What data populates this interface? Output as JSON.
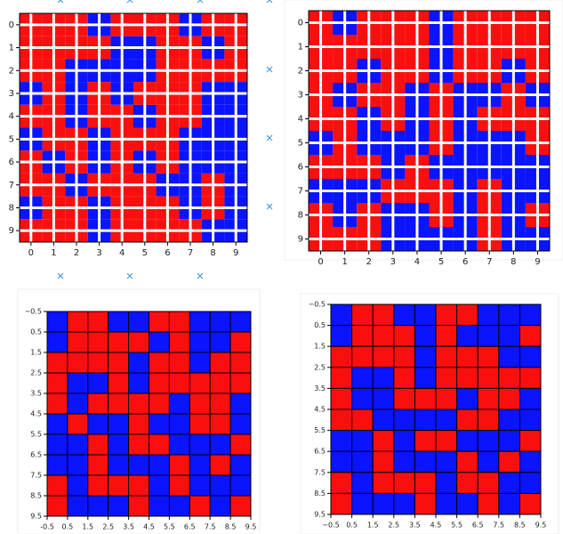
{
  "chart_data": [
    {
      "type": "heatmap",
      "colors": [
        "#0a14ff",
        "#fa0f0f"
      ],
      "grid": true,
      "cell_edges": false,
      "xlim": [
        -0.5,
        9.5
      ],
      "ylim": [
        9.5,
        -0.5
      ],
      "xticks": [
        0,
        1,
        2,
        3,
        4,
        5,
        6,
        7,
        8,
        9
      ],
      "yticks": [
        0,
        1,
        2,
        3,
        4,
        5,
        6,
        7,
        8,
        9
      ],
      "z": [
        [
          1,
          1,
          1,
          0,
          1,
          1,
          1,
          0,
          1,
          1
        ],
        [
          1,
          1,
          1,
          1,
          0,
          0,
          1,
          1,
          0,
          1
        ],
        [
          1,
          1,
          0,
          0,
          0,
          0,
          1,
          1,
          1,
          1
        ],
        [
          0,
          1,
          0,
          1,
          0,
          1,
          1,
          1,
          0,
          0
        ],
        [
          1,
          1,
          0,
          1,
          1,
          0,
          1,
          1,
          0,
          0
        ],
        [
          0,
          1,
          1,
          0,
          1,
          1,
          1,
          0,
          0,
          0
        ],
        [
          1,
          0,
          1,
          0,
          1,
          0,
          1,
          0,
          0,
          0
        ],
        [
          1,
          1,
          0,
          1,
          1,
          1,
          0,
          0,
          1,
          0
        ],
        [
          0,
          1,
          1,
          0,
          1,
          1,
          1,
          0,
          1,
          0
        ],
        [
          1,
          1,
          1,
          0,
          1,
          1,
          1,
          1,
          0,
          0
        ]
      ]
    },
    {
      "type": "heatmap",
      "colors": [
        "#0a14ff",
        "#fa0f0f"
      ],
      "grid": true,
      "cell_edges": false,
      "xlim": [
        -0.5,
        9.5
      ],
      "ylim": [
        9.5,
        -0.5
      ],
      "xticks": [
        0,
        1,
        2,
        3,
        4,
        5,
        6,
        7,
        8,
        9
      ],
      "yticks": [
        0,
        1,
        2,
        3,
        4,
        5,
        6,
        7,
        8,
        9
      ],
      "z": [
        [
          1,
          0,
          1,
          1,
          1,
          0,
          1,
          1,
          1,
          1
        ],
        [
          1,
          1,
          1,
          1,
          1,
          0,
          1,
          1,
          1,
          1
        ],
        [
          1,
          1,
          0,
          1,
          1,
          0,
          1,
          1,
          0,
          1
        ],
        [
          1,
          0,
          1,
          1,
          0,
          1,
          0,
          0,
          1,
          0
        ],
        [
          1,
          1,
          0,
          1,
          0,
          1,
          0,
          1,
          1,
          1
        ],
        [
          0,
          1,
          0,
          0,
          0,
          1,
          0,
          0,
          0,
          1
        ],
        [
          1,
          1,
          1,
          0,
          1,
          0,
          0,
          0,
          0,
          0
        ],
        [
          0,
          0,
          0,
          1,
          1,
          1,
          0,
          1,
          0,
          0
        ],
        [
          1,
          0,
          1,
          0,
          0,
          1,
          0,
          1,
          0,
          1
        ],
        [
          1,
          1,
          1,
          0,
          0,
          0,
          0,
          1,
          0,
          0
        ]
      ]
    },
    {
      "type": "heatmap",
      "colors": [
        "#0a14ff",
        "#fa0f0f"
      ],
      "grid": false,
      "cell_edges": true,
      "xlim": [
        -0.5,
        9.5
      ],
      "ylim": [
        9.5,
        -0.5
      ],
      "xticks": [
        {
          "value": -0.5,
          "label": "-0.5"
        },
        0.5,
        1.5,
        2.5,
        3.5,
        4.5,
        5.5,
        6.5,
        7.5,
        8.5,
        9.5
      ],
      "yticks": [
        {
          "value": -0.5,
          "label": "−0.5"
        },
        0.5,
        1.5,
        2.5,
        3.5,
        4.5,
        5.5,
        6.5,
        7.5,
        8.5,
        9.5
      ],
      "z": [
        [
          0,
          1,
          1,
          0,
          0,
          1,
          1,
          0,
          0,
          0
        ],
        [
          0,
          1,
          1,
          1,
          1,
          0,
          1,
          0,
          0,
          1
        ],
        [
          1,
          1,
          1,
          1,
          0,
          1,
          1,
          0,
          1,
          1
        ],
        [
          1,
          0,
          0,
          1,
          0,
          1,
          1,
          1,
          1,
          1
        ],
        [
          1,
          0,
          1,
          1,
          1,
          1,
          0,
          1,
          1,
          0
        ],
        [
          0,
          1,
          0,
          0,
          1,
          0,
          0,
          1,
          1,
          0
        ],
        [
          0,
          0,
          1,
          0,
          1,
          1,
          0,
          0,
          0,
          1
        ],
        [
          0,
          0,
          1,
          0,
          0,
          0,
          1,
          0,
          1,
          0
        ],
        [
          1,
          0,
          1,
          1,
          1,
          0,
          1,
          0,
          0,
          0
        ],
        [
          1,
          0,
          0,
          0,
          1,
          0,
          0,
          1,
          0,
          1
        ]
      ]
    },
    {
      "type": "heatmap",
      "colors": [
        "#0a14ff",
        "#fa0f0f"
      ],
      "grid": false,
      "cell_edges": true,
      "xlim": [
        -0.5,
        9.5
      ],
      "ylim": [
        9.5,
        -0.5
      ],
      "xticks": [
        {
          "value": -0.5,
          "label": "−0.5"
        },
        0.5,
        1.5,
        2.5,
        3.5,
        4.5,
        5.5,
        6.5,
        7.5,
        8.5,
        9.5
      ],
      "yticks": [
        {
          "value": -0.5,
          "label": "−0.5"
        },
        0.5,
        1.5,
        2.5,
        3.5,
        4.5,
        5.5,
        6.5,
        7.5,
        8.5,
        9.5
      ],
      "z": [
        [
          0,
          1,
          1,
          0,
          0,
          1,
          1,
          0,
          0,
          0
        ],
        [
          0,
          1,
          1,
          1,
          0,
          1,
          0,
          0,
          0,
          1
        ],
        [
          1,
          1,
          1,
          1,
          0,
          1,
          1,
          1,
          0,
          0
        ],
        [
          1,
          0,
          0,
          1,
          0,
          1,
          1,
          1,
          1,
          1
        ],
        [
          1,
          0,
          0,
          1,
          1,
          1,
          0,
          1,
          1,
          0
        ],
        [
          1,
          1,
          0,
          0,
          0,
          0,
          1,
          1,
          0,
          0
        ],
        [
          0,
          0,
          1,
          0,
          1,
          1,
          0,
          0,
          0,
          1
        ],
        [
          0,
          0,
          1,
          0,
          0,
          0,
          1,
          0,
          1,
          0
        ],
        [
          1,
          0,
          1,
          1,
          1,
          0,
          1,
          1,
          0,
          0
        ],
        [
          1,
          0,
          0,
          0,
          1,
          0,
          0,
          1,
          0,
          1
        ]
      ]
    }
  ]
}
